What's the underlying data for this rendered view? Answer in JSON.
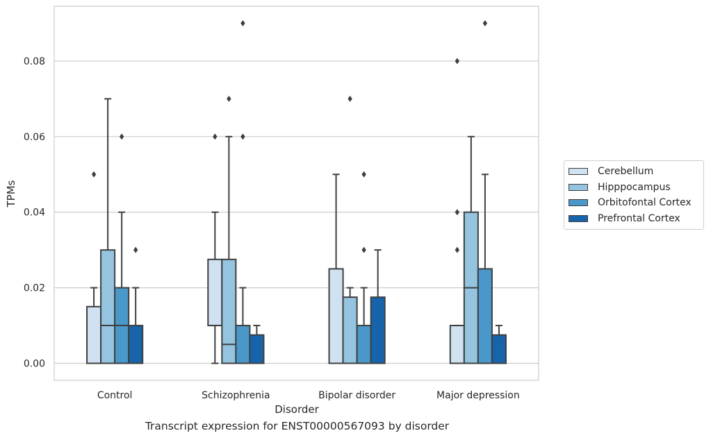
{
  "chart_data": {
    "type": "box",
    "title": "",
    "xlabel": "Disorder",
    "ylabel": "TPMs",
    "ylim": [
      -0.0045,
      0.0945
    ],
    "yticks": [
      "0.00",
      "0.02",
      "0.04",
      "0.06",
      "0.08"
    ],
    "ytick_values": [
      0,
      0.02,
      0.04,
      0.06,
      0.08
    ],
    "grid": "horizontal",
    "legend_position": "right",
    "categories": [
      "Control",
      "Schizophrenia",
      "Bipolar disorder",
      "Major depression"
    ],
    "series": [
      {
        "name": "Cerebellum",
        "color": "#d0e1f2",
        "boxes": [
          {
            "q1": 0,
            "median": 0,
            "q3": 0.015,
            "whislo": 0,
            "whishi": 0.02,
            "fliers": [
              0.05
            ]
          },
          {
            "q1": 0.01,
            "median": 0.01,
            "q3": 0.0275,
            "whislo": 0,
            "whishi": 0.04,
            "fliers": [
              0.06
            ]
          },
          {
            "q1": 0,
            "median": 0,
            "q3": 0.025,
            "whislo": 0,
            "whishi": 0.05,
            "fliers": []
          },
          {
            "q1": 0,
            "median": 0,
            "q3": 0.01,
            "whislo": 0,
            "whishi": 0.01,
            "fliers": [
              0.03,
              0.04,
              0.08
            ]
          }
        ]
      },
      {
        "name": "Hipppocampus",
        "color": "#94c4df",
        "boxes": [
          {
            "q1": 0,
            "median": 0.01,
            "q3": 0.03,
            "whislo": 0,
            "whishi": 0.07,
            "fliers": []
          },
          {
            "q1": 0,
            "median": 0.005,
            "q3": 0.0275,
            "whislo": 0,
            "whishi": 0.06,
            "fliers": [
              0.07
            ]
          },
          {
            "q1": 0,
            "median": 0,
            "q3": 0.0175,
            "whislo": 0,
            "whishi": 0.02,
            "fliers": [
              0.07
            ]
          },
          {
            "q1": 0,
            "median": 0.02,
            "q3": 0.04,
            "whislo": 0,
            "whishi": 0.06,
            "fliers": []
          }
        ]
      },
      {
        "name": "Orbitofontal Cortex",
        "color": "#4a98c9",
        "boxes": [
          {
            "q1": 0,
            "median": 0.01,
            "q3": 0.02,
            "whislo": 0,
            "whishi": 0.04,
            "fliers": [
              0.06
            ]
          },
          {
            "q1": 0,
            "median": 0,
            "q3": 0.01,
            "whislo": 0,
            "whishi": 0.02,
            "fliers": [
              0.06,
              0.09
            ]
          },
          {
            "q1": 0,
            "median": 0,
            "q3": 0.01,
            "whislo": 0,
            "whishi": 0.02,
            "fliers": [
              0.03,
              0.05
            ]
          },
          {
            "q1": 0,
            "median": 0,
            "q3": 0.025,
            "whislo": 0,
            "whishi": 0.05,
            "fliers": [
              0.09
            ]
          }
        ]
      },
      {
        "name": "Prefrontal Cortex",
        "color": "#1764ab",
        "boxes": [
          {
            "q1": 0,
            "median": 0,
            "q3": 0.01,
            "whislo": 0,
            "whishi": 0.02,
            "fliers": [
              0.03
            ]
          },
          {
            "q1": 0,
            "median": 0,
            "q3": 0.0075,
            "whislo": 0,
            "whishi": 0.01,
            "fliers": []
          },
          {
            "q1": 0,
            "median": 0,
            "q3": 0.0175,
            "whislo": 0,
            "whishi": 0.03,
            "fliers": []
          },
          {
            "q1": 0,
            "median": 0,
            "q3": 0.0075,
            "whislo": 0,
            "whishi": 0.01,
            "fliers": []
          }
        ]
      }
    ]
  },
  "caption": "Transcript expression for ENST00000567093 by disorder"
}
